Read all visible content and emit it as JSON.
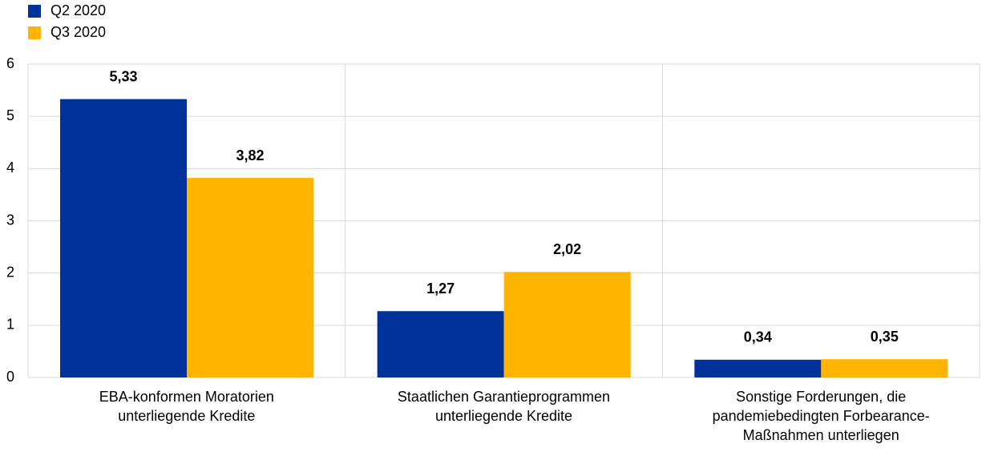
{
  "chart_data": {
    "type": "grouped_bar",
    "categories": [
      [
        "EBA-konformen Moratorien",
        "unterliegende Kredite"
      ],
      [
        "Staatlichen Garantieprogrammen",
        "unterliegende Kredite"
      ],
      [
        "Sonstige Forderungen, die",
        "pandemiebedingten Forbearance-",
        "Maßnahmen unterliegen"
      ]
    ],
    "series": [
      {
        "name": "Q2 2020",
        "color": "#003299",
        "values": [
          5.33,
          1.27,
          0.34
        ],
        "value_labels": [
          "5,33",
          "1,27",
          "0,34"
        ]
      },
      {
        "name": "Q3 2020",
        "color": "#ffb400",
        "values": [
          3.82,
          2.02,
          0.35
        ],
        "value_labels": [
          "3,82",
          "2,02",
          "0,35"
        ]
      }
    ],
    "ylim": [
      0,
      6
    ],
    "yticks": [
      0,
      1,
      2,
      3,
      4,
      5,
      6
    ],
    "grid": true,
    "legend": "top-left"
  }
}
